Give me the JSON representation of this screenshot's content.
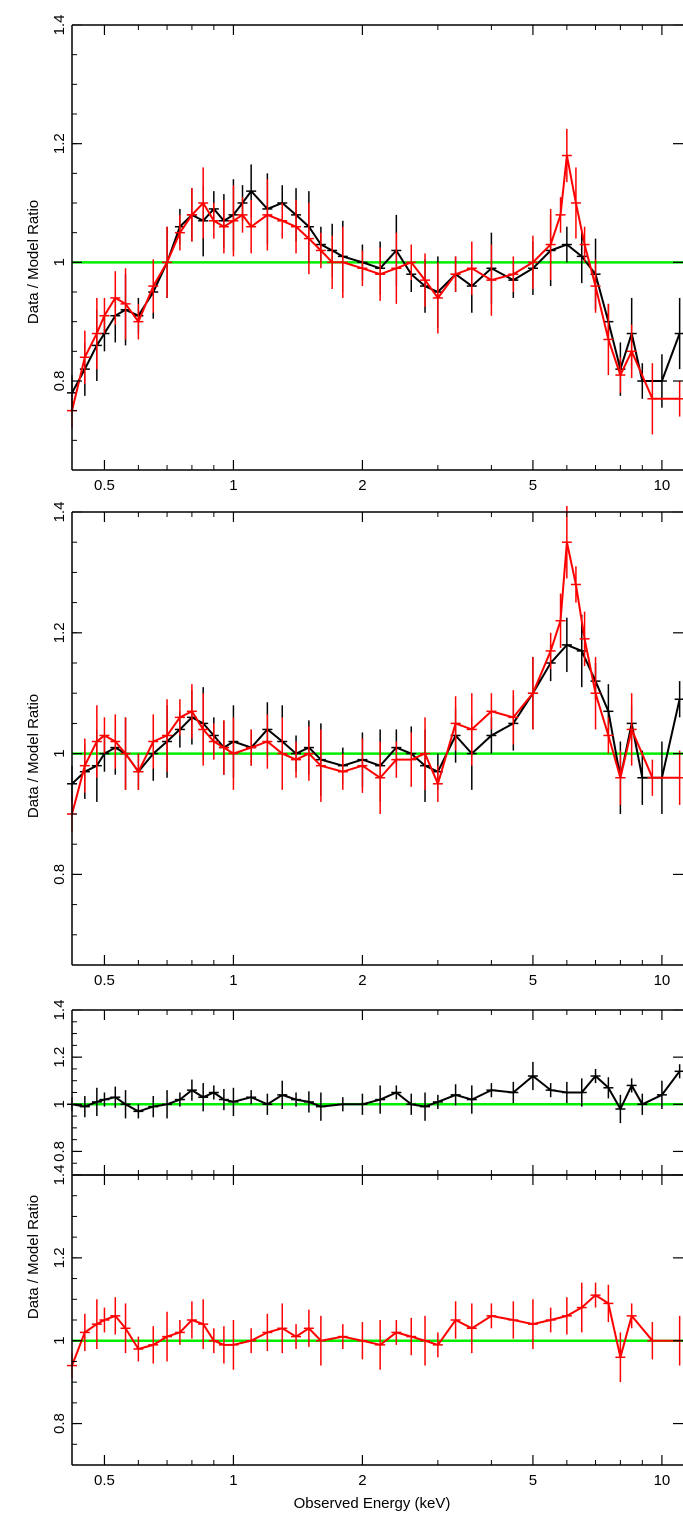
{
  "xlabel": "Observed Energy (keV)",
  "ylabel": "Data / Model Ratio",
  "colors": {
    "series1": "#000000",
    "series2": "#ff0000",
    "reference": "#00ee00",
    "axis": "#000000"
  },
  "chart_data": [
    {
      "type": "line",
      "xscale": "log",
      "xlim": [
        0.42,
        11.2
      ],
      "ylim": [
        0.65,
        1.4
      ],
      "reference_line": 1,
      "xticks": [
        {
          "v": 0.5,
          "label": "0.5"
        },
        {
          "v": 1,
          "label": "1"
        },
        {
          "v": 2,
          "label": "2"
        },
        {
          "v": 5,
          "label": "5"
        },
        {
          "v": 10,
          "label": "10"
        }
      ],
      "yticks": [
        {
          "v": 0.8,
          "label": "0.8"
        },
        {
          "v": 1,
          "label": "1"
        },
        {
          "v": 1.2,
          "label": "1.2"
        },
        {
          "v": 1.4,
          "label": "1.4"
        }
      ],
      "series": [
        {
          "color": "#000000",
          "x": [
            0.42,
            0.45,
            0.48,
            0.5,
            0.53,
            0.56,
            0.6,
            0.65,
            0.7,
            0.75,
            0.8,
            0.85,
            0.9,
            0.95,
            1.0,
            1.05,
            1.1,
            1.2,
            1.3,
            1.4,
            1.5,
            1.6,
            1.7,
            1.8,
            2.0,
            2.2,
            2.4,
            2.6,
            2.8,
            3.0,
            3.3,
            3.6,
            4.0,
            4.5,
            5.0,
            5.5,
            6.0,
            6.5,
            7.0,
            7.5,
            8.0,
            8.5,
            9.0,
            10.0,
            11.0
          ],
          "y": [
            0.78,
            0.82,
            0.86,
            0.88,
            0.91,
            0.92,
            0.91,
            0.95,
            1.0,
            1.06,
            1.08,
            1.07,
            1.09,
            1.07,
            1.08,
            1.1,
            1.12,
            1.09,
            1.1,
            1.08,
            1.06,
            1.03,
            1.02,
            1.01,
            1.0,
            0.99,
            1.02,
            0.98,
            0.96,
            0.95,
            0.98,
            0.96,
            0.99,
            0.97,
            0.99,
            1.02,
            1.03,
            1.01,
            0.98,
            0.9,
            0.82,
            0.88,
            0.8,
            0.8,
            0.88
          ]
        },
        {
          "color": "#ff0000",
          "x": [
            0.42,
            0.45,
            0.48,
            0.5,
            0.53,
            0.56,
            0.6,
            0.65,
            0.7,
            0.75,
            0.8,
            0.85,
            0.9,
            0.95,
            1.0,
            1.05,
            1.1,
            1.2,
            1.3,
            1.4,
            1.5,
            1.6,
            1.7,
            1.8,
            2.0,
            2.2,
            2.4,
            2.6,
            2.8,
            3.0,
            3.3,
            3.6,
            4.0,
            4.5,
            5.0,
            5.5,
            5.8,
            6.0,
            6.3,
            6.6,
            7.0,
            7.5,
            8.0,
            8.5,
            9.5,
            11.0
          ],
          "y": [
            0.75,
            0.84,
            0.88,
            0.91,
            0.94,
            0.93,
            0.9,
            0.96,
            1.0,
            1.05,
            1.08,
            1.1,
            1.07,
            1.06,
            1.07,
            1.08,
            1.06,
            1.08,
            1.07,
            1.06,
            1.04,
            1.02,
            1.0,
            1.0,
            0.99,
            0.98,
            0.99,
            1.0,
            0.97,
            0.94,
            0.98,
            0.99,
            0.97,
            0.98,
            1.0,
            1.03,
            1.08,
            1.18,
            1.1,
            1.03,
            0.96,
            0.87,
            0.81,
            0.85,
            0.77,
            0.77
          ]
        }
      ]
    },
    {
      "type": "line",
      "xscale": "log",
      "xlim": [
        0.42,
        11.2
      ],
      "ylim": [
        0.65,
        1.4
      ],
      "reference_line": 1,
      "xticks": [
        {
          "v": 0.5,
          "label": "0.5"
        },
        {
          "v": 1,
          "label": "1"
        },
        {
          "v": 2,
          "label": "2"
        },
        {
          "v": 5,
          "label": "5"
        },
        {
          "v": 10,
          "label": "10"
        }
      ],
      "yticks": [
        {
          "v": 0.8,
          "label": "0.8"
        },
        {
          "v": 1,
          "label": "1"
        },
        {
          "v": 1.2,
          "label": "1.2"
        },
        {
          "v": 1.4,
          "label": "1.4"
        }
      ],
      "series": [
        {
          "color": "#000000",
          "x": [
            0.42,
            0.45,
            0.48,
            0.5,
            0.53,
            0.56,
            0.6,
            0.65,
            0.7,
            0.75,
            0.8,
            0.85,
            0.9,
            0.95,
            1.0,
            1.1,
            1.2,
            1.3,
            1.4,
            1.5,
            1.6,
            1.8,
            2.0,
            2.2,
            2.4,
            2.6,
            2.8,
            3.0,
            3.3,
            3.6,
            4.0,
            4.5,
            5.0,
            5.5,
            6.0,
            6.5,
            7.0,
            7.5,
            8.0,
            8.5,
            9.0,
            10.0,
            11.0
          ],
          "y": [
            0.95,
            0.97,
            0.98,
            1.0,
            1.01,
            1.0,
            0.97,
            1.0,
            1.02,
            1.04,
            1.06,
            1.05,
            1.03,
            1.01,
            1.02,
            1.01,
            1.04,
            1.02,
            1.0,
            1.01,
            0.99,
            0.98,
            0.99,
            0.98,
            1.01,
            1.0,
            0.98,
            0.97,
            1.03,
            1.0,
            1.03,
            1.05,
            1.1,
            1.15,
            1.18,
            1.17,
            1.12,
            1.07,
            0.96,
            1.05,
            0.96,
            0.96,
            1.09
          ]
        },
        {
          "color": "#ff0000",
          "x": [
            0.42,
            0.45,
            0.48,
            0.5,
            0.53,
            0.56,
            0.6,
            0.65,
            0.7,
            0.75,
            0.8,
            0.85,
            0.9,
            0.95,
            1.0,
            1.1,
            1.2,
            1.3,
            1.4,
            1.5,
            1.6,
            1.8,
            2.0,
            2.2,
            2.4,
            2.6,
            2.8,
            3.0,
            3.3,
            3.6,
            4.0,
            4.5,
            5.0,
            5.5,
            5.8,
            6.0,
            6.3,
            6.6,
            7.0,
            7.5,
            8.0,
            8.5,
            9.5,
            11.0
          ],
          "y": [
            0.9,
            0.98,
            1.02,
            1.03,
            1.02,
            1.0,
            0.97,
            1.02,
            1.03,
            1.06,
            1.07,
            1.04,
            1.02,
            1.01,
            1.0,
            1.01,
            1.02,
            1.0,
            0.99,
            1.0,
            0.98,
            0.97,
            0.98,
            0.96,
            0.99,
            0.99,
            1.0,
            0.95,
            1.05,
            1.04,
            1.07,
            1.06,
            1.1,
            1.17,
            1.22,
            1.35,
            1.28,
            1.19,
            1.1,
            1.03,
            0.96,
            1.04,
            0.96,
            0.96
          ]
        }
      ]
    },
    {
      "type": "line",
      "xscale": "log",
      "xlim": [
        0.42,
        11.2
      ],
      "ylim": [
        0.7,
        1.4
      ],
      "reference_line": 1,
      "xticks": [
        {
          "v": 0.5,
          "label": ""
        },
        {
          "v": 1,
          "label": ""
        },
        {
          "v": 2,
          "label": ""
        },
        {
          "v": 5,
          "label": ""
        },
        {
          "v": 10,
          "label": ""
        }
      ],
      "yticks": [
        {
          "v": 0.8,
          "label": "0.8"
        },
        {
          "v": 1,
          "label": "1"
        },
        {
          "v": 1.2,
          "label": "1.2"
        },
        {
          "v": 1.4,
          "label": "1.4"
        }
      ],
      "series": [
        {
          "color": "#000000",
          "x": [
            0.42,
            0.45,
            0.48,
            0.5,
            0.53,
            0.56,
            0.6,
            0.65,
            0.7,
            0.75,
            0.8,
            0.85,
            0.9,
            0.95,
            1.0,
            1.1,
            1.2,
            1.3,
            1.4,
            1.5,
            1.6,
            1.8,
            2.0,
            2.2,
            2.4,
            2.6,
            2.8,
            3.0,
            3.3,
            3.6,
            4.0,
            4.5,
            5.0,
            5.5,
            6.0,
            6.5,
            7.0,
            7.5,
            8.0,
            8.5,
            9.0,
            10.0,
            11.0
          ],
          "y": [
            1.0,
            0.99,
            1.01,
            1.02,
            1.03,
            1.0,
            0.97,
            0.99,
            1.0,
            1.02,
            1.06,
            1.03,
            1.05,
            1.02,
            1.01,
            1.03,
            1.0,
            1.04,
            1.02,
            1.01,
            0.99,
            1.0,
            1.0,
            1.02,
            1.05,
            1.0,
            0.99,
            1.01,
            1.04,
            1.02,
            1.06,
            1.05,
            1.12,
            1.06,
            1.05,
            1.05,
            1.12,
            1.07,
            0.98,
            1.08,
            1.0,
            1.04,
            1.14
          ]
        }
      ]
    },
    {
      "type": "line",
      "xscale": "log",
      "xlim": [
        0.42,
        11.2
      ],
      "ylim": [
        0.7,
        1.4
      ],
      "reference_line": 1,
      "xticks": [
        {
          "v": 0.5,
          "label": "0.5"
        },
        {
          "v": 1,
          "label": "1"
        },
        {
          "v": 2,
          "label": "2"
        },
        {
          "v": 5,
          "label": "5"
        },
        {
          "v": 10,
          "label": "10"
        }
      ],
      "yticks": [
        {
          "v": 0.8,
          "label": "0.8"
        },
        {
          "v": 1,
          "label": "1"
        },
        {
          "v": 1.2,
          "label": "1.2"
        },
        {
          "v": 1.4,
          "label": "1.4"
        }
      ],
      "series": [
        {
          "color": "#ff0000",
          "x": [
            0.42,
            0.45,
            0.48,
            0.5,
            0.53,
            0.56,
            0.6,
            0.65,
            0.7,
            0.75,
            0.8,
            0.85,
            0.9,
            0.95,
            1.0,
            1.1,
            1.2,
            1.3,
            1.4,
            1.5,
            1.6,
            1.8,
            2.0,
            2.2,
            2.4,
            2.6,
            2.8,
            3.0,
            3.3,
            3.6,
            4.0,
            4.5,
            5.0,
            5.5,
            6.0,
            6.5,
            7.0,
            7.5,
            8.0,
            8.5,
            9.5,
            11.0
          ],
          "y": [
            0.94,
            1.02,
            1.04,
            1.05,
            1.06,
            1.03,
            0.98,
            0.99,
            1.01,
            1.02,
            1.05,
            1.04,
            1.0,
            0.99,
            0.99,
            1.0,
            1.02,
            1.03,
            1.01,
            1.03,
            1.0,
            1.01,
            1.0,
            0.99,
            1.02,
            1.01,
            1.0,
            0.99,
            1.05,
            1.03,
            1.06,
            1.05,
            1.04,
            1.05,
            1.06,
            1.08,
            1.11,
            1.09,
            0.96,
            1.06,
            1.0,
            1.0
          ]
        }
      ]
    }
  ]
}
